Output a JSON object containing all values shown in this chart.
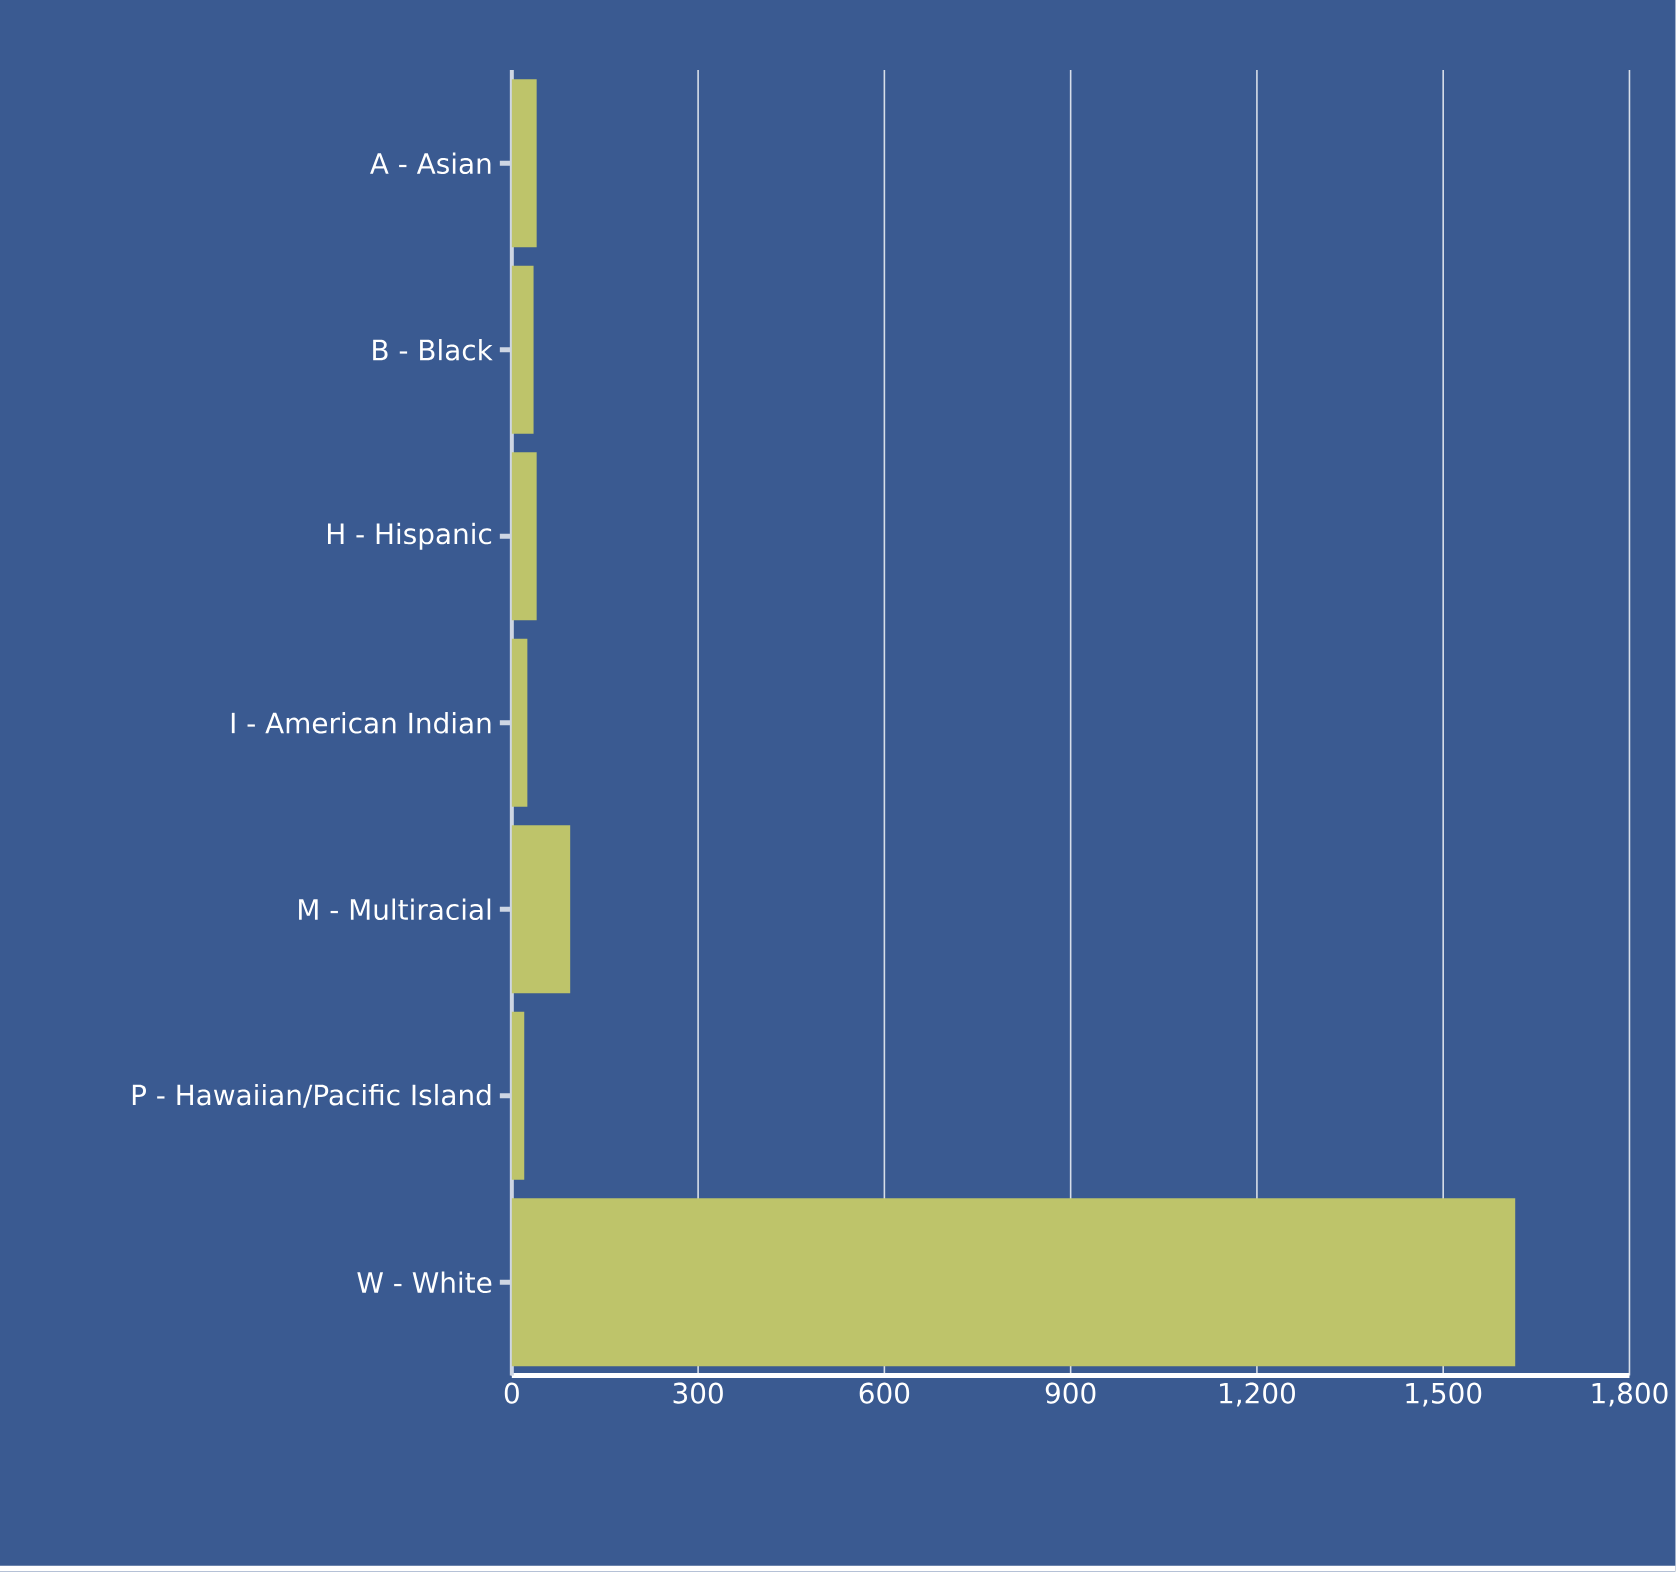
{
  "chart_data": {
    "type": "bar",
    "orientation": "horizontal",
    "categories": [
      "A - Asian",
      "B - Black",
      "H - Hispanic",
      "I - American Indian",
      "M - Multiracial",
      "P - Hawaiian/Pacific Island",
      "W - White"
    ],
    "values": [
      40,
      35,
      40,
      25,
      94,
      20,
      1616
    ],
    "color": "#bec46a",
    "xlim": [
      0,
      1800
    ],
    "xticks": [
      0,
      300,
      600,
      900,
      {
        "value": 1200,
        "label": "1,200"
      },
      {
        "value": 1500,
        "label": "1,500"
      },
      {
        "value": 1800,
        "label": "1,800"
      }
    ],
    "grid": "x"
  }
}
